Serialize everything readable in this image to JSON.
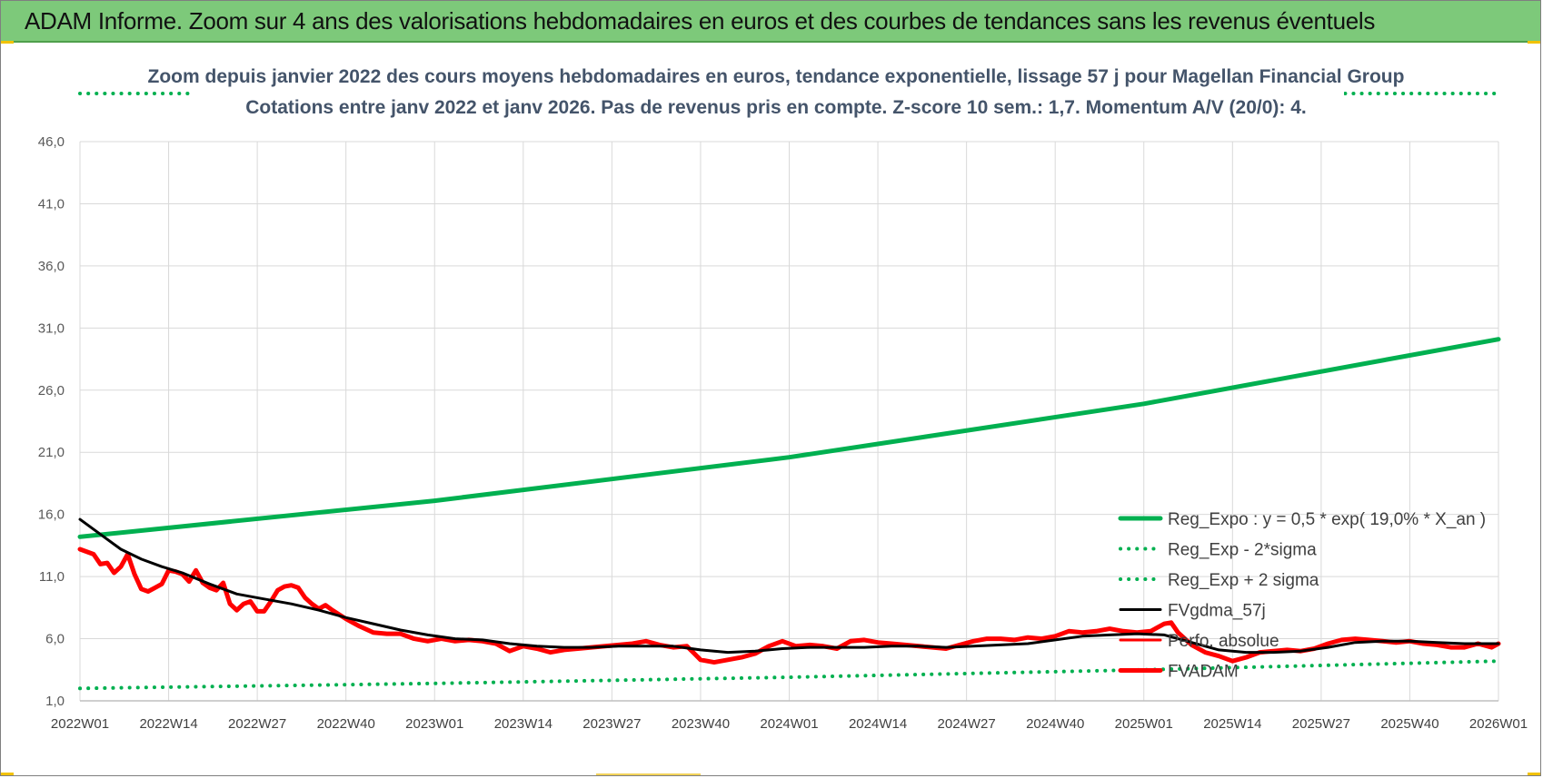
{
  "header": {
    "title": "ADAM Informe. Zoom sur 4 ans des valorisations hebdomadaires en euros et des courbes de tendances sans les revenus éventuels"
  },
  "colors": {
    "header_bg": "#7dc97a",
    "reg_expo": "#00b050",
    "reg_band": "#00b050",
    "fvgdma": "#000000",
    "fvadam": "#ff0000",
    "perf": "#ff0000"
  },
  "chart_data": {
    "type": "line",
    "title": "Zoom depuis janvier 2022 des cours moyens hebdomadaires en euros, tendance exponentielle, lissage 57 j pour Magellan Financial Group",
    "subtitle": "Cotations entre janv 2022 et janv 2026. Pas de revenus pris en compte. Z-score 10 sem.: 1,7. Momentum A/V (20/0): 4.",
    "xlabel": "",
    "ylabel": "",
    "ylim": [
      1.0,
      46.0
    ],
    "yticks": [
      "1,0",
      "6,0",
      "11,0",
      "16,0",
      "21,0",
      "26,0",
      "31,0",
      "36,0",
      "41,0",
      "46,0"
    ],
    "ytick_values": [
      1,
      6,
      11,
      16,
      21,
      26,
      31,
      36,
      41,
      46
    ],
    "x_range": [
      1,
      209
    ],
    "xticks": [
      "2022W01",
      "2022W14",
      "2022W27",
      "2022W40",
      "2023W01",
      "2023W14",
      "2023W27",
      "2023W40",
      "2024W01",
      "2024W14",
      "2024W27",
      "2024W40",
      "2025W01",
      "2025W14",
      "2025W27",
      "2025W40",
      "2026W01"
    ],
    "xtick_values": [
      1,
      14,
      27,
      40,
      53,
      66,
      79,
      92,
      105,
      118,
      131,
      144,
      157,
      170,
      183,
      196,
      209
    ],
    "grid": true,
    "legend_position": "right, inside plot",
    "series": [
      {
        "name": "Reg_Expo : y = 0,5 * exp( 19,0% *  X_an )",
        "style": "solid-thick",
        "color": "#00b050",
        "x": [
          1,
          53,
          105,
          157,
          209
        ],
        "y": [
          14.2,
          17.1,
          20.6,
          24.9,
          30.1
        ]
      },
      {
        "name": "Reg_Exp - 2*sigma",
        "style": "dotted",
        "color": "#00b050",
        "x": [
          1,
          53,
          105,
          157,
          209
        ],
        "y": [
          2.0,
          2.4,
          2.9,
          3.5,
          4.2
        ]
      },
      {
        "name": "Reg_Exp + 2 sigma",
        "style": "dotted",
        "color": "#00b050",
        "x": [
          1,
          20,
          190,
          209
        ],
        "y": [
          50.2,
          50.2,
          50.2,
          50.2
        ]
      },
      {
        "name": "FVgdma_57j",
        "style": "solid",
        "color": "#000000",
        "x": [
          1,
          4,
          7,
          10,
          13,
          16,
          20,
          24,
          28,
          32,
          36,
          40,
          44,
          48,
          52,
          56,
          60,
          64,
          68,
          72,
          76,
          80,
          84,
          88,
          92,
          96,
          100,
          104,
          108,
          112,
          116,
          120,
          124,
          128,
          132,
          136,
          140,
          144,
          148,
          152,
          156,
          160,
          164,
          168,
          172,
          176,
          180,
          184,
          188,
          192,
          196,
          200,
          204,
          209
        ],
        "y": [
          15.6,
          14.4,
          13.2,
          12.4,
          11.8,
          11.3,
          10.4,
          9.6,
          9.2,
          8.8,
          8.3,
          7.7,
          7.2,
          6.7,
          6.3,
          6.0,
          5.9,
          5.6,
          5.4,
          5.3,
          5.3,
          5.4,
          5.4,
          5.4,
          5.1,
          4.9,
          5.0,
          5.2,
          5.3,
          5.3,
          5.3,
          5.4,
          5.4,
          5.3,
          5.4,
          5.5,
          5.6,
          5.9,
          6.2,
          6.3,
          6.4,
          6.3,
          5.7,
          5.1,
          4.9,
          4.9,
          5.0,
          5.3,
          5.7,
          5.8,
          5.8,
          5.7,
          5.6,
          5.6
        ]
      },
      {
        "name": "Perfo. absolue",
        "style": "solid",
        "color": "#ff0000",
        "x": [],
        "y": []
      },
      {
        "name": "FVADAM",
        "style": "solid-thick",
        "color": "#ff0000",
        "x": [
          1,
          3,
          4,
          5,
          6,
          7,
          8,
          9,
          10,
          11,
          12,
          13,
          14,
          15,
          16,
          17,
          18,
          19,
          20,
          21,
          22,
          23,
          24,
          25,
          26,
          27,
          28,
          29,
          30,
          31,
          32,
          33,
          34,
          35,
          36,
          37,
          38,
          40,
          42,
          44,
          46,
          48,
          50,
          52,
          54,
          56,
          58,
          60,
          62,
          64,
          66,
          68,
          70,
          72,
          74,
          76,
          78,
          80,
          82,
          84,
          86,
          88,
          90,
          92,
          94,
          96,
          98,
          100,
          102,
          104,
          106,
          108,
          110,
          112,
          114,
          116,
          118,
          120,
          122,
          124,
          126,
          128,
          130,
          132,
          134,
          136,
          138,
          140,
          142,
          144,
          146,
          148,
          150,
          152,
          154,
          156,
          158,
          160,
          161,
          162,
          164,
          166,
          168,
          170,
          172,
          174,
          176,
          178,
          180,
          182,
          184,
          186,
          188,
          190,
          192,
          194,
          196,
          198,
          200,
          202,
          204,
          206,
          208,
          209
        ],
        "y": [
          13.2,
          12.8,
          12.0,
          12.1,
          11.3,
          11.8,
          12.8,
          11.2,
          10.0,
          9.8,
          10.1,
          10.4,
          11.5,
          11.4,
          11.2,
          10.6,
          11.5,
          10.5,
          10.1,
          9.9,
          10.5,
          8.8,
          8.3,
          8.8,
          9.0,
          8.2,
          8.2,
          9.0,
          9.9,
          10.2,
          10.3,
          10.1,
          9.3,
          8.8,
          8.4,
          8.7,
          8.3,
          7.6,
          7.0,
          6.5,
          6.4,
          6.4,
          6.0,
          5.8,
          6.0,
          5.8,
          5.9,
          5.8,
          5.6,
          5.0,
          5.4,
          5.2,
          4.9,
          5.1,
          5.2,
          5.3,
          5.4,
          5.5,
          5.6,
          5.8,
          5.5,
          5.3,
          5.4,
          4.3,
          4.1,
          4.3,
          4.5,
          4.8,
          5.4,
          5.8,
          5.4,
          5.5,
          5.4,
          5.2,
          5.8,
          5.9,
          5.7,
          5.6,
          5.5,
          5.4,
          5.3,
          5.2,
          5.5,
          5.8,
          6.0,
          6.0,
          5.9,
          6.1,
          6.0,
          6.2,
          6.6,
          6.5,
          6.6,
          6.8,
          6.6,
          6.5,
          6.6,
          7.2,
          7.3,
          6.5,
          5.5,
          4.9,
          4.6,
          4.2,
          4.5,
          4.9,
          5.0,
          5.1,
          5.0,
          5.2,
          5.6,
          5.9,
          6.0,
          5.9,
          5.8,
          5.7,
          5.8,
          5.6,
          5.5,
          5.3,
          5.3,
          5.6,
          5.3,
          5.6
        ]
      }
    ]
  }
}
